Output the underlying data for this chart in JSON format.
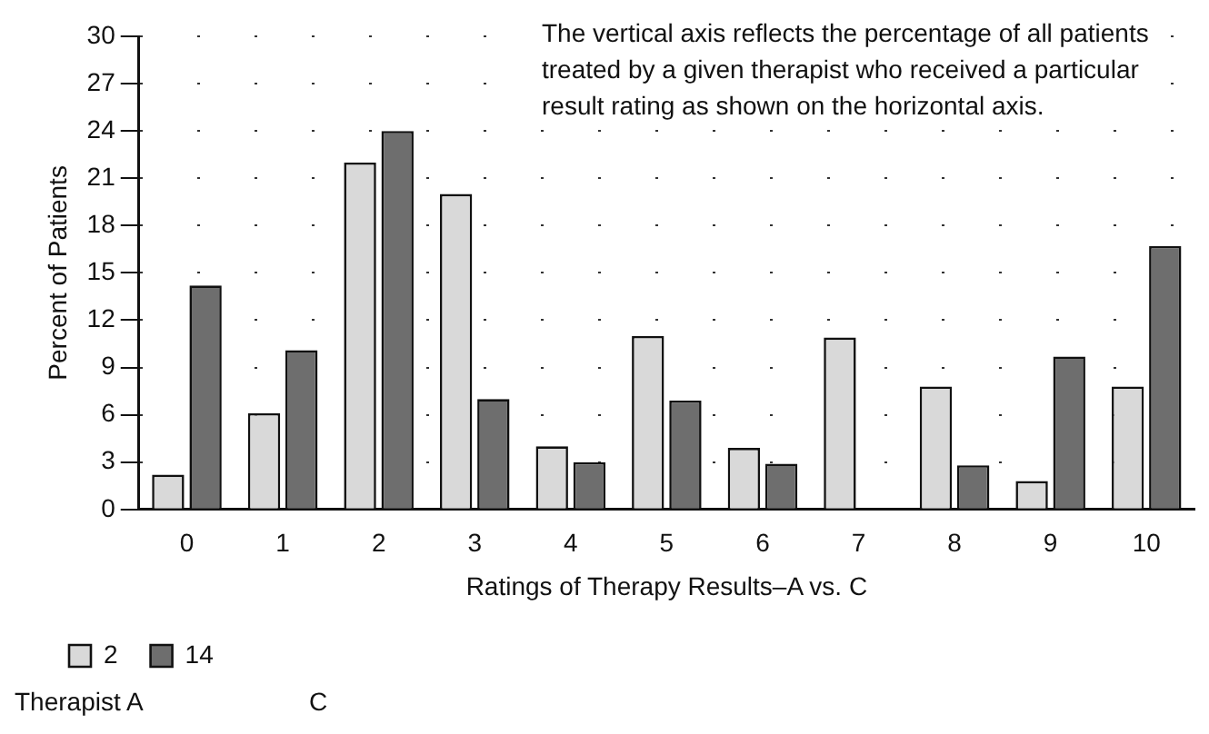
{
  "chart_data": {
    "type": "bar",
    "xlabel": "Ratings of Therapy Results–A vs. C",
    "ylabel": "Percent of Patients",
    "categories": [
      "0",
      "1",
      "2",
      "3",
      "4",
      "5",
      "6",
      "7",
      "8",
      "9",
      "10"
    ],
    "series": [
      {
        "name": "2",
        "color": "#d9d9d9",
        "values": [
          2.2,
          6.1,
          22,
          20,
          4,
          11,
          3.9,
          10.9,
          7.8,
          1.8,
          7.8
        ]
      },
      {
        "name": "14",
        "color": "#6e6e6e",
        "values": [
          14.2,
          10.1,
          24,
          7,
          3,
          6.9,
          2.9,
          0,
          2.8,
          9.7,
          16.7
        ]
      }
    ],
    "ylim": [
      0,
      30
    ],
    "yticks": [
      0,
      3,
      6,
      9,
      12,
      15,
      18,
      21,
      24,
      27,
      30
    ],
    "grid": "y",
    "legend": "bottom left",
    "annotations": [
      "The vertical axis reflects the percentage of all patients treated by a given therapist who received a particular result rating as shown on the horizontal axis.",
      "Therapist A",
      "C"
    ]
  }
}
